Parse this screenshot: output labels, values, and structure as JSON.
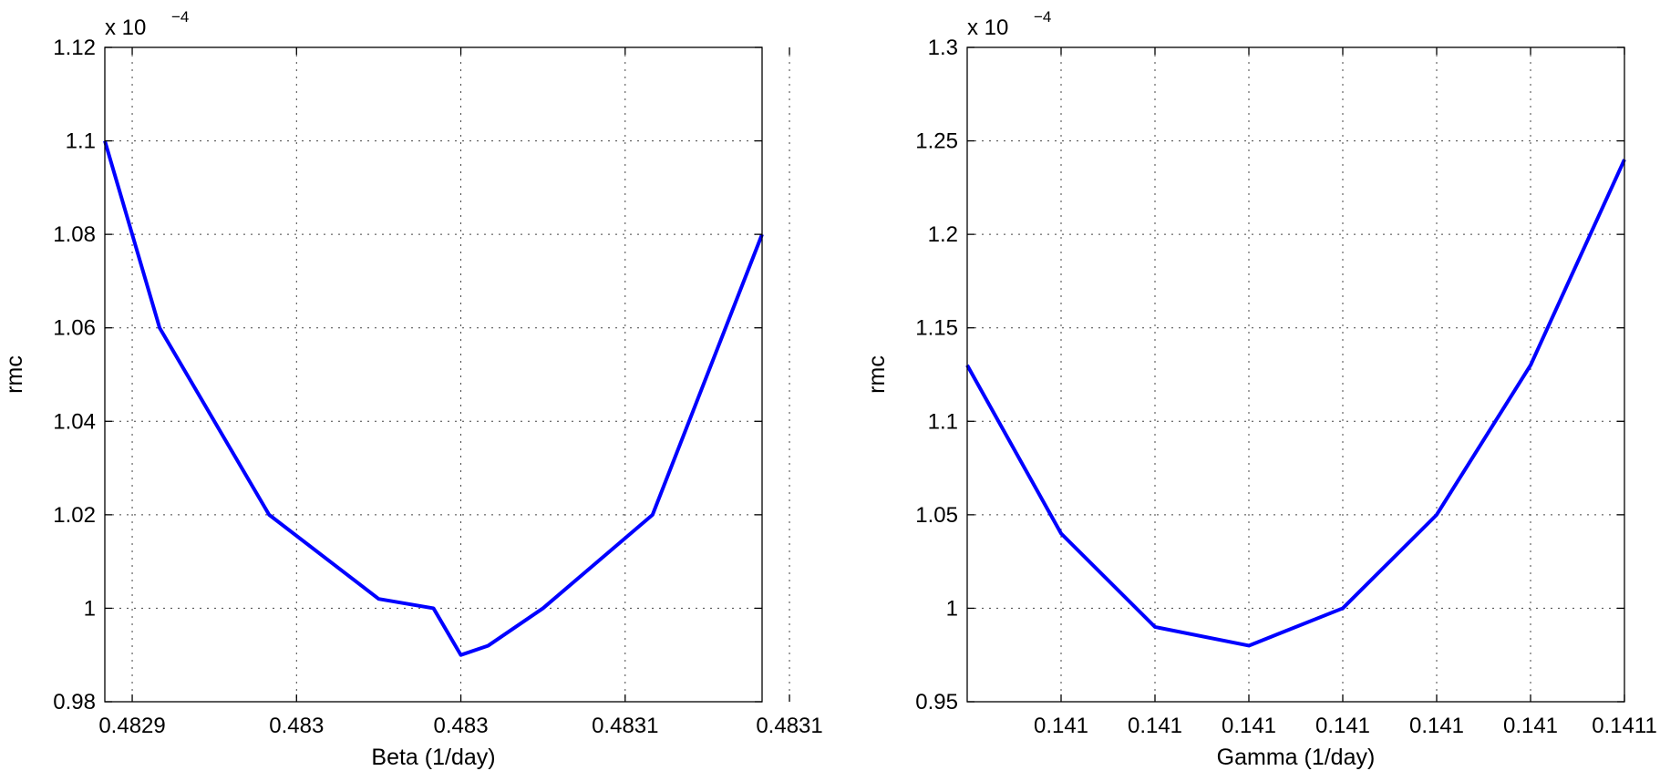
{
  "chart_data": [
    {
      "type": "line",
      "xlabel": "Beta (1/day)",
      "ylabel": "rmc",
      "exponent_label": "x 10",
      "exponent": "−4",
      "ylim": [
        0.98,
        1.12
      ],
      "xlim": [
        0.48288,
        0.48312
      ],
      "yticks": [
        0.98,
        1,
        1.02,
        1.04,
        1.06,
        1.08,
        1.1,
        1.12
      ],
      "ytick_labels": [
        "0.98",
        "1",
        "1.02",
        "1.04",
        "1.06",
        "1.08",
        "1.1",
        "1.12"
      ],
      "xticks": [
        0.48289,
        0.48295,
        0.48301,
        0.48307,
        0.48313
      ],
      "xtick_labels": [
        "0.4829",
        "0.483",
        "0.483",
        "0.4831",
        "0.4831"
      ],
      "grid": true,
      "color": "#0000ff",
      "series": [
        {
          "x": [
            0.48288,
            0.4829,
            0.48294,
            0.48298,
            0.483,
            0.48301,
            0.48302,
            0.48304,
            0.48308,
            0.48312
          ],
          "y": [
            1.1,
            1.06,
            1.02,
            1.002,
            1.0,
            0.99,
            0.992,
            1.0,
            1.02,
            1.08
          ]
        }
      ]
    },
    {
      "type": "line",
      "xlabel": "Gamma (1/day)",
      "ylabel": "rmc",
      "exponent_label": "x 10",
      "exponent": "−4",
      "ylim": [
        0.95,
        1.3
      ],
      "xlim": [
        0.14095,
        0.14102
      ],
      "yticks": [
        0.95,
        1,
        1.05,
        1.1,
        1.15,
        1.2,
        1.25,
        1.3
      ],
      "ytick_labels": [
        "0.95",
        "1",
        "1.05",
        "1.1",
        "1.15",
        "1.2",
        "1.25",
        "1.3"
      ],
      "xticks": [
        0.14096,
        0.14097,
        0.14098,
        0.14099,
        0.141,
        0.14101,
        0.14102
      ],
      "xtick_labels": [
        "0.141",
        "0.141",
        "0.141",
        "0.141",
        "0.141",
        "0.141",
        "0.1411"
      ],
      "grid": true,
      "color": "#0000ff",
      "series": [
        {
          "x": [
            0.14095,
            0.14096,
            0.14097,
            0.14098,
            0.14099,
            0.141,
            0.14101,
            0.14102
          ],
          "y": [
            1.13,
            1.04,
            0.99,
            0.98,
            1.0,
            1.05,
            1.13,
            1.24
          ]
        }
      ]
    }
  ]
}
